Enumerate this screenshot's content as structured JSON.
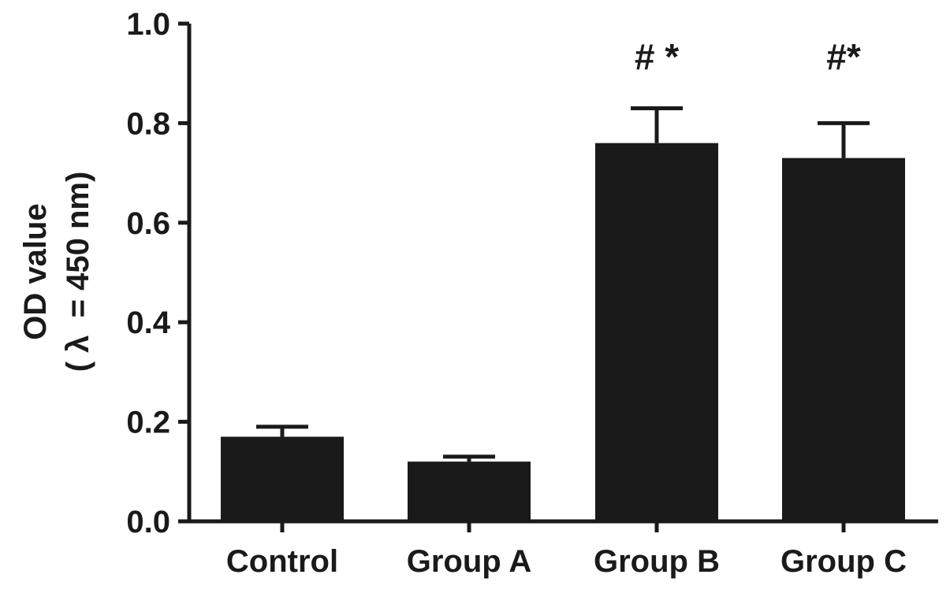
{
  "chart_data": {
    "type": "bar",
    "categories": [
      "Control",
      "Group A",
      "Group B",
      "Group C"
    ],
    "values": [
      0.17,
      0.12,
      0.76,
      0.73
    ],
    "error_upper": [
      0.19,
      0.13,
      0.83,
      0.8
    ],
    "annotations": [
      "",
      "",
      "# *",
      "#*"
    ],
    "ylabel_line1": "OD value",
    "ylabel_line2": "( λ  = 450 nm)",
    "ylim": [
      0.0,
      1.0
    ],
    "yticks": [
      0.0,
      0.2,
      0.4,
      0.6,
      0.8,
      1.0
    ],
    "ytick_labels": [
      "0.0",
      "0.2",
      "0.4",
      "0.6",
      "0.8",
      "1.0"
    ],
    "grid": false,
    "legend": "none",
    "colors": {
      "bar": "#1a1a1a",
      "axis": "#1a1a1a",
      "background": "#ffffff"
    }
  }
}
